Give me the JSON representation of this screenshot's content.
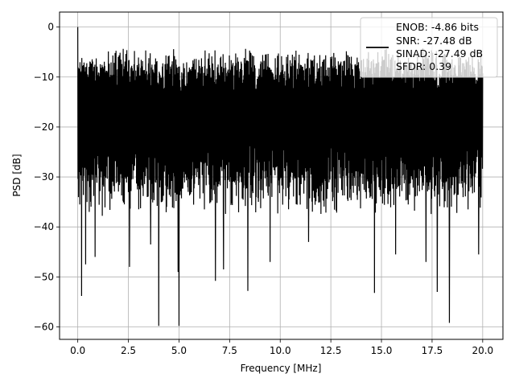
{
  "chart_data": {
    "type": "line",
    "title": "",
    "xlabel": "Frequency [MHz]",
    "ylabel": "PSD [dB]",
    "xlim": [
      -0.9,
      21.0
    ],
    "ylim": [
      -62.5,
      3.0
    ],
    "xticks": [
      0.0,
      2.5,
      5.0,
      7.5,
      10.0,
      12.5,
      15.0,
      17.5,
      20.0
    ],
    "xtick_labels": [
      "0.0",
      "2.5",
      "5.0",
      "7.5",
      "10.0",
      "12.5",
      "15.0",
      "17.5",
      "20.0"
    ],
    "yticks": [
      0,
      -10,
      -20,
      -30,
      -40,
      -50,
      -60
    ],
    "ytick_labels": [
      "0",
      "−10",
      "−20",
      "−30",
      "−40",
      "−50",
      "−60"
    ],
    "grid": true,
    "legend_position": "top-right",
    "series": [
      {
        "name": "ENOB: -4.86 bits\nSNR: -27.48 dB\nSINAD: -27.49 dB\nSFDR: 0.39",
        "color": "#000000",
        "x_range": [
          0.0,
          20.0
        ],
        "description": "dense noise spectrum, peak 0 dB at 0 MHz, mostly between -10 and -38 dB",
        "peak": {
          "x": 0.0,
          "y": 0.0
        },
        "notable_dips": [
          {
            "x": 0.18,
            "y": -53.8
          },
          {
            "x": 0.38,
            "y": -47.5
          },
          {
            "x": 0.85,
            "y": -46.0
          },
          {
            "x": 2.55,
            "y": -48.0
          },
          {
            "x": 3.6,
            "y": -43.5
          },
          {
            "x": 4.0,
            "y": -59.8
          },
          {
            "x": 4.95,
            "y": -49.0
          },
          {
            "x": 5.0,
            "y": -59.8
          },
          {
            "x": 6.8,
            "y": -50.8
          },
          {
            "x": 7.2,
            "y": -48.5
          },
          {
            "x": 8.4,
            "y": -52.8
          },
          {
            "x": 9.5,
            "y": -47.0
          },
          {
            "x": 11.4,
            "y": -43.0
          },
          {
            "x": 14.65,
            "y": -53.2
          },
          {
            "x": 15.7,
            "y": -45.5
          },
          {
            "x": 17.2,
            "y": -47.0
          },
          {
            "x": 17.75,
            "y": -53.0
          },
          {
            "x": 18.35,
            "y": -59.2
          },
          {
            "x": 19.8,
            "y": -45.5
          }
        ]
      }
    ],
    "legend_lines": [
      "ENOB: -4.86 bits",
      "SNR: -27.48 dB",
      "SINAD: -27.49 dB",
      "SFDR: 0.39"
    ]
  }
}
